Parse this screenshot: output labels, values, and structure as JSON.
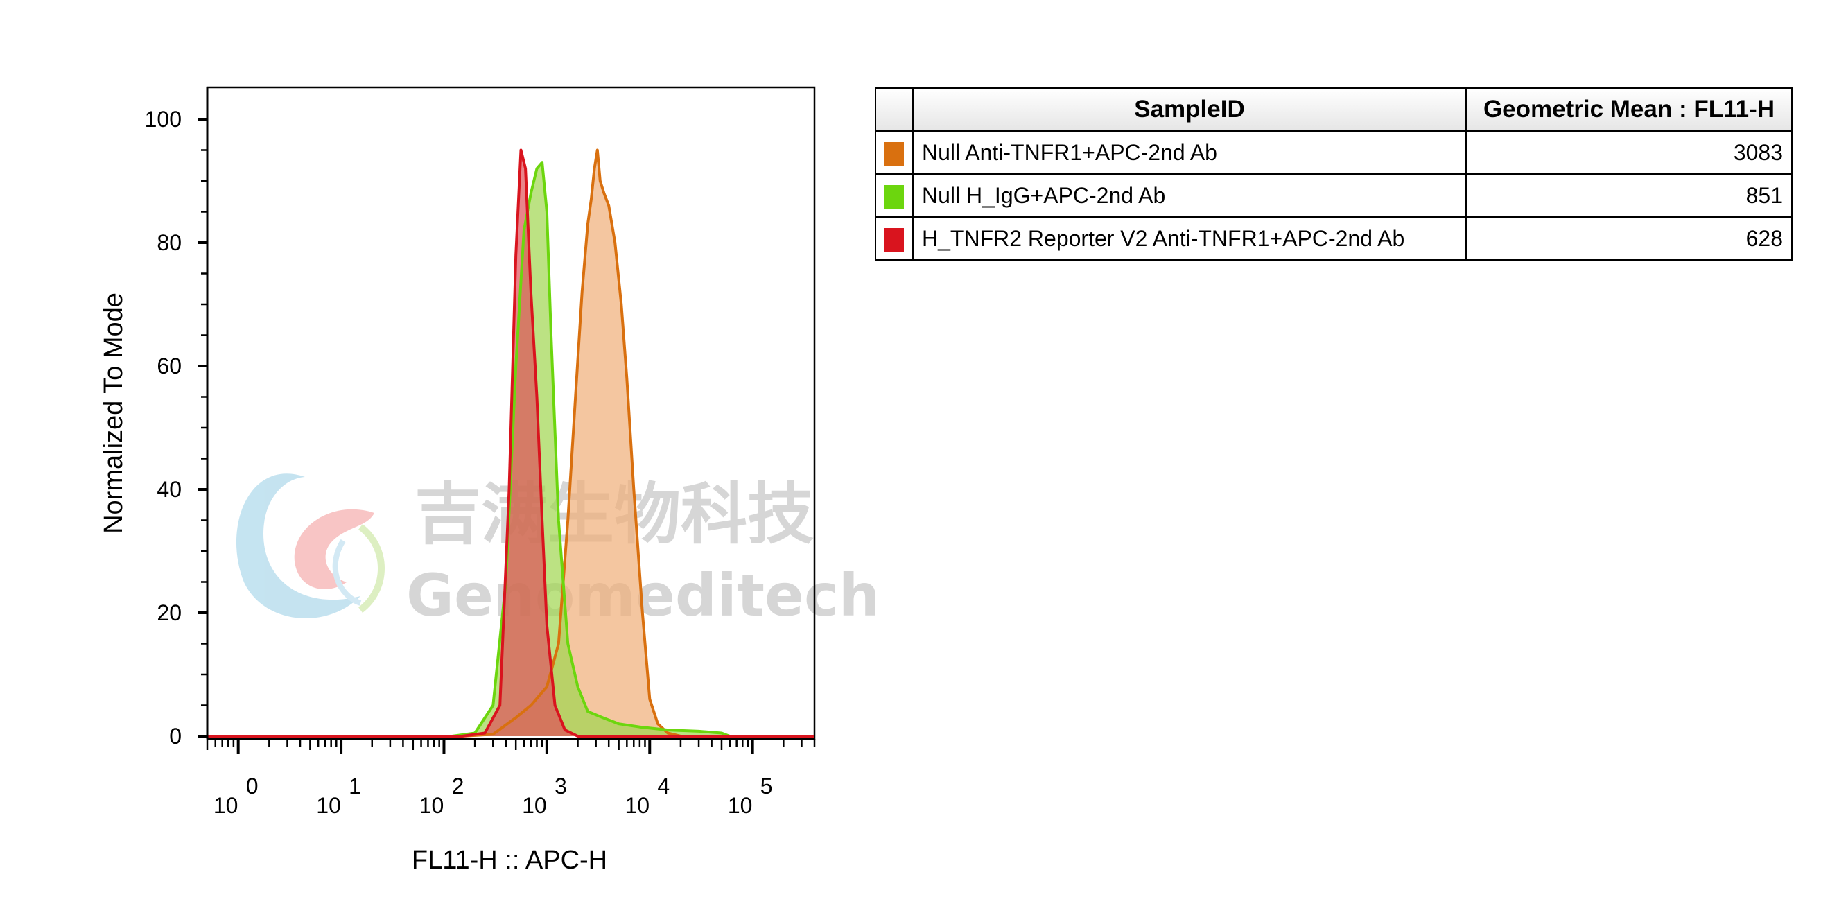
{
  "chart_data": {
    "type": "area",
    "xlabel": "FL11-H :: APC-H",
    "ylabel": "Normalized To Mode",
    "x_scale": "log",
    "xlim": [
      0.5,
      400000
    ],
    "ylim": [
      0,
      105
    ],
    "x_ticks": [
      {
        "base": "10",
        "exp": "0",
        "value": 1
      },
      {
        "base": "10",
        "exp": "1",
        "value": 10
      },
      {
        "base": "10",
        "exp": "2",
        "value": 100
      },
      {
        "base": "10",
        "exp": "3",
        "value": 1000
      },
      {
        "base": "10",
        "exp": "4",
        "value": 10000
      },
      {
        "base": "10",
        "exp": "5",
        "value": 100000
      }
    ],
    "y_ticks": [
      "0",
      "20",
      "40",
      "60",
      "80",
      "100"
    ],
    "legend_position": "right",
    "series": [
      {
        "name": "Null Anti-TNFR1+APC-2nd Ab",
        "geometric_mean": "3083",
        "color": "#d9700f",
        "fill": "#f0ae78",
        "points": [
          [
            0.5,
            0
          ],
          [
            150,
            0
          ],
          [
            300,
            0.3
          ],
          [
            500,
            3
          ],
          [
            700,
            5
          ],
          [
            1000,
            8
          ],
          [
            1300,
            15
          ],
          [
            1600,
            35
          ],
          [
            1900,
            55
          ],
          [
            2200,
            72
          ],
          [
            2500,
            83
          ],
          [
            2700,
            87
          ],
          [
            2900,
            92
          ],
          [
            3100,
            95
          ],
          [
            3300,
            90
          ],
          [
            3600,
            88
          ],
          [
            4000,
            86
          ],
          [
            4600,
            80
          ],
          [
            5300,
            70
          ],
          [
            6000,
            58
          ],
          [
            7000,
            40
          ],
          [
            8500,
            20
          ],
          [
            10000,
            6
          ],
          [
            12000,
            2
          ],
          [
            15000,
            0.5
          ],
          [
            20000,
            0
          ],
          [
            400000,
            0
          ]
        ]
      },
      {
        "name": "Null H_IgG+APC-2nd Ab",
        "geometric_mean": "851",
        "color": "#6cd60e",
        "fill": "#9fd64e",
        "points": [
          [
            0.5,
            0
          ],
          [
            120,
            0
          ],
          [
            200,
            0.5
          ],
          [
            300,
            5
          ],
          [
            400,
            25
          ],
          [
            500,
            60
          ],
          [
            600,
            82
          ],
          [
            700,
            88
          ],
          [
            800,
            92
          ],
          [
            900,
            93
          ],
          [
            1000,
            85
          ],
          [
            1100,
            65
          ],
          [
            1300,
            35
          ],
          [
            1600,
            15
          ],
          [
            2000,
            8
          ],
          [
            2500,
            4
          ],
          [
            3500,
            3
          ],
          [
            5000,
            2
          ],
          [
            8000,
            1.5
          ],
          [
            15000,
            1
          ],
          [
            30000,
            0.8
          ],
          [
            50000,
            0.5
          ],
          [
            60000,
            0
          ],
          [
            400000,
            0
          ]
        ]
      },
      {
        "name": "H_TNFR2 Reporter V2 Anti-TNFR1+APC-2nd Ab",
        "geometric_mean": "628",
        "color": "#d9141e",
        "fill": "#e0505a",
        "points": [
          [
            0.5,
            0
          ],
          [
            150,
            0
          ],
          [
            250,
            0.5
          ],
          [
            350,
            5
          ],
          [
            430,
            40
          ],
          [
            500,
            78
          ],
          [
            560,
            95
          ],
          [
            620,
            92
          ],
          [
            700,
            72
          ],
          [
            800,
            55
          ],
          [
            900,
            35
          ],
          [
            1000,
            18
          ],
          [
            1200,
            5
          ],
          [
            1500,
            1
          ],
          [
            2000,
            0
          ],
          [
            400000,
            0
          ]
        ]
      }
    ]
  },
  "legend_table": {
    "headers": {
      "sample": "SampleID",
      "value": "Geometric Mean : FL11-H"
    },
    "rows": [
      {
        "sample": "Null Anti-TNFR1+APC-2nd Ab",
        "value": "3083",
        "color": "#d9700f"
      },
      {
        "sample": "Null H_IgG+APC-2nd Ab",
        "value": "851",
        "color": "#6cd60e"
      },
      {
        "sample": "H_TNFR2 Reporter V2 Anti-TNFR1+APC-2nd Ab",
        "value": "628",
        "color": "#d9141e"
      }
    ]
  },
  "watermark": {
    "cn": "吉满生物科技",
    "en": "Genomeditech"
  }
}
